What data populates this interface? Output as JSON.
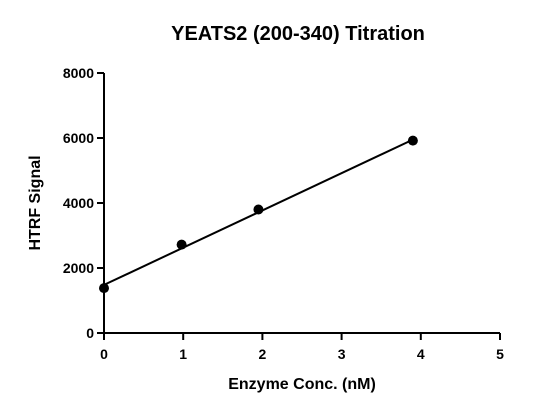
{
  "chart_data": {
    "type": "scatter",
    "title": "YEATS2 (200-340) Titration",
    "xlabel": "Enzyme Conc. (nM)",
    "ylabel": "HTRF Signal",
    "xlim": [
      0,
      5
    ],
    "ylim": [
      0,
      8000
    ],
    "xticks": [
      0,
      1,
      2,
      3,
      4,
      5
    ],
    "yticks": [
      0,
      2000,
      4000,
      6000,
      8000
    ],
    "points": [
      {
        "x": 0,
        "y": 1380
      },
      {
        "x": 0.98,
        "y": 2720
      },
      {
        "x": 1.95,
        "y": 3800
      },
      {
        "x": 3.9,
        "y": 5920
      }
    ],
    "fit_line": {
      "x": [
        0,
        3.9
      ],
      "y": [
        1480,
        5950
      ]
    },
    "grid": false,
    "legend": "none"
  }
}
